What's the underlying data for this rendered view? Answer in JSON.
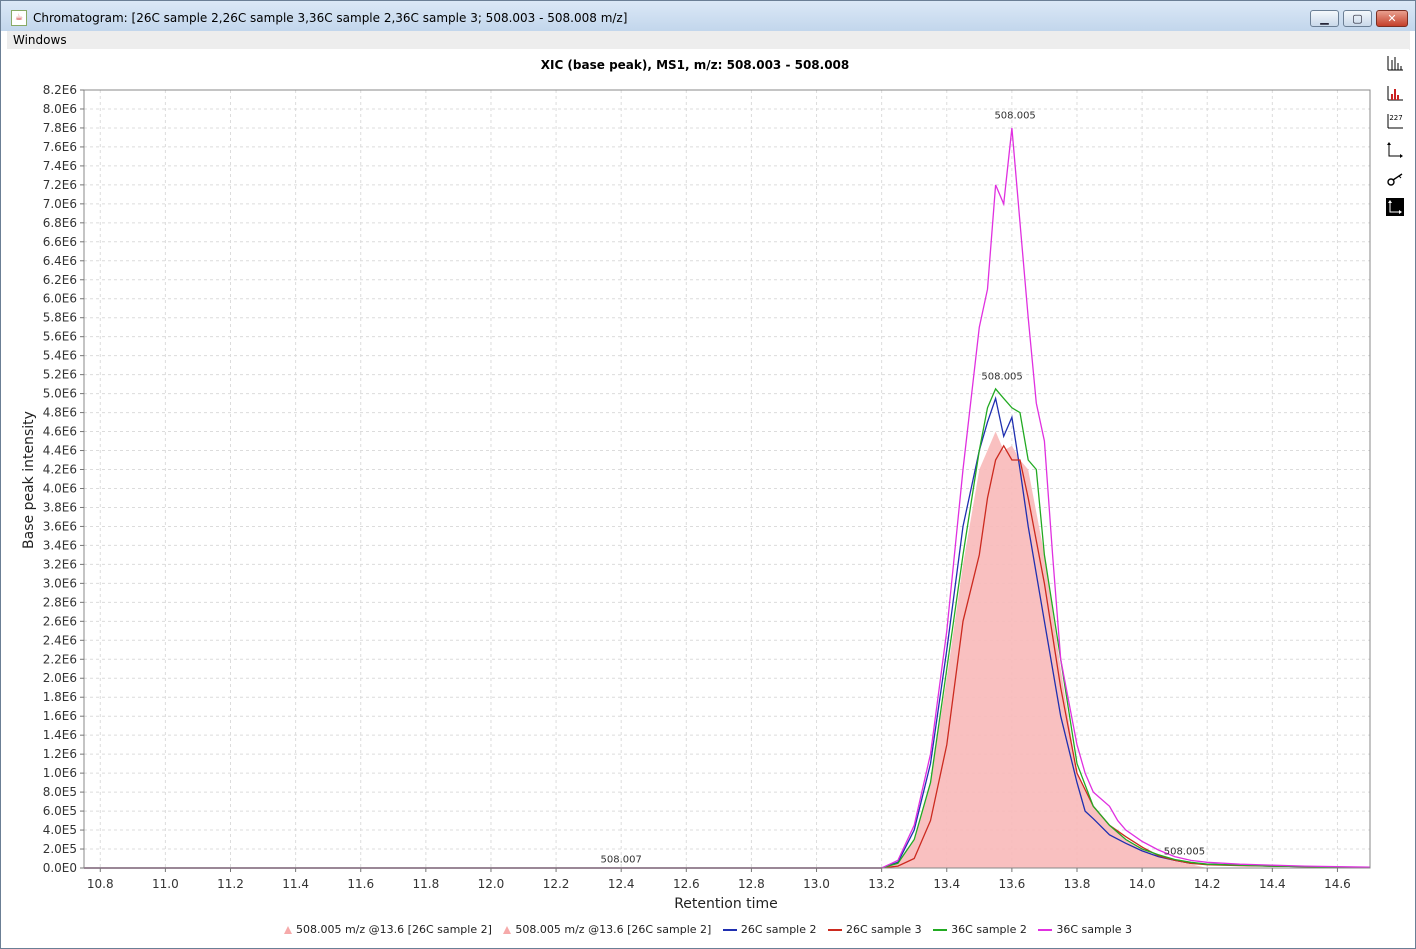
{
  "window": {
    "title": "Chromatogram: [26C sample 2,26C sample 3,36C sample 2,36C sample 3; 508.003 - 508.008 m/z]",
    "minimize_label": "▁",
    "maximize_label": "▢",
    "close_label": "✕"
  },
  "menu": {
    "windows_label": "Windows"
  },
  "toolbar": {
    "icons": [
      "spectrum-icon",
      "peak-spectrum-icon",
      "label-values-icon",
      "axis-icon",
      "key-icon",
      "zoom-reset-icon"
    ],
    "values_label": "227"
  },
  "chart_data": {
    "type": "line",
    "title": "XIC (base peak), MS1, m/z: 508.003 - 508.008",
    "xlabel": "Retention time",
    "ylabel": "Base peak intensity",
    "xlim": [
      10.75,
      14.7
    ],
    "ylim": [
      0,
      8200000
    ],
    "x_ticks": [
      "10.8",
      "11.0",
      "11.2",
      "11.4",
      "11.6",
      "11.8",
      "12.0",
      "12.2",
      "12.4",
      "12.6",
      "12.8",
      "13.0",
      "13.2",
      "13.4",
      "13.6",
      "13.8",
      "14.0",
      "14.2",
      "14.4",
      "14.6"
    ],
    "y_ticks": [
      "0.0E0",
      "2.0E5",
      "4.0E5",
      "6.0E5",
      "8.0E5",
      "1.0E6",
      "1.2E6",
      "1.4E6",
      "1.6E6",
      "1.8E6",
      "2.0E6",
      "2.2E6",
      "2.4E6",
      "2.6E6",
      "2.8E6",
      "3.0E6",
      "3.2E6",
      "3.4E6",
      "3.6E6",
      "3.8E6",
      "4.0E6",
      "4.2E6",
      "4.4E6",
      "4.6E6",
      "4.8E6",
      "5.0E6",
      "5.2E6",
      "5.4E6",
      "5.6E6",
      "5.8E6",
      "6.0E6",
      "6.2E6",
      "6.4E6",
      "6.6E6",
      "6.8E6",
      "7.0E6",
      "7.2E6",
      "7.4E6",
      "7.6E6",
      "7.8E6",
      "8.0E6",
      "8.2E6"
    ],
    "grid": true,
    "legend_position": "bottom",
    "annotations": [
      {
        "text": "508.005",
        "x": 13.61,
        "y": 7900000
      },
      {
        "text": "508.005",
        "x": 13.57,
        "y": 5150000
      },
      {
        "text": "508.007",
        "x": 12.4,
        "y": 60000
      },
      {
        "text": "508.005",
        "x": 14.13,
        "y": 140000
      }
    ],
    "peaks": [
      {
        "name": "508.005 m/z @13.6 [26C sample 2]",
        "color": "#f6aaaa"
      },
      {
        "name": "508.005 m/z @13.6 [26C sample 2]",
        "color": "#f6aaaa"
      }
    ],
    "fill": {
      "color": "#f8b9b9",
      "x": [
        13.2,
        13.25,
        13.3,
        13.35,
        13.4,
        13.45,
        13.5,
        13.55,
        13.575,
        13.6,
        13.625,
        13.65,
        13.7,
        13.75,
        13.8,
        13.85,
        13.9,
        13.95,
        14.0,
        14.05,
        14.1,
        14.15,
        14.2
      ],
      "y": [
        0,
        50000,
        300000,
        900000,
        2000000,
        3200000,
        4200000,
        4600000,
        4400000,
        4450000,
        4300000,
        4200000,
        3300000,
        2100000,
        1000000,
        650000,
        450000,
        300000,
        200000,
        120000,
        70000,
        40000,
        0
      ]
    },
    "series": [
      {
        "name": "26C sample 2",
        "color": "#1f2fb0",
        "x": [
          10.75,
          13.2,
          13.25,
          13.3,
          13.35,
          13.4,
          13.45,
          13.5,
          13.525,
          13.55,
          13.575,
          13.6,
          13.625,
          13.65,
          13.7,
          13.75,
          13.8,
          13.825,
          13.85,
          13.9,
          13.95,
          14.0,
          14.05,
          14.1,
          14.15,
          14.2,
          14.3,
          14.4,
          14.5,
          14.6,
          14.7
        ],
        "y": [
          0,
          0,
          60000,
          400000,
          1100000,
          2300000,
          3600000,
          4400000,
          4700000,
          4950000,
          4550000,
          4750000,
          4200000,
          3600000,
          2600000,
          1600000,
          900000,
          600000,
          520000,
          350000,
          260000,
          180000,
          120000,
          80000,
          50000,
          40000,
          30000,
          20000,
          15000,
          10000,
          5000
        ]
      },
      {
        "name": "26C sample 3",
        "color": "#cc2a1f",
        "x": [
          10.75,
          13.2,
          13.25,
          13.3,
          13.35,
          13.4,
          13.45,
          13.5,
          13.525,
          13.55,
          13.575,
          13.6,
          13.625,
          13.65,
          13.7,
          13.75,
          13.8,
          13.85,
          13.9,
          13.95,
          14.0,
          14.05,
          14.1,
          14.15,
          14.2,
          14.3,
          14.4,
          14.5,
          14.6,
          14.7
        ],
        "y": [
          0,
          0,
          20000,
          100000,
          500000,
          1300000,
          2600000,
          3300000,
          3900000,
          4300000,
          4450000,
          4300000,
          4300000,
          3900000,
          3000000,
          1900000,
          1000000,
          650000,
          450000,
          330000,
          220000,
          130000,
          80000,
          50000,
          35000,
          25000,
          20000,
          15000,
          10000,
          5000
        ]
      },
      {
        "name": "36C sample 2",
        "color": "#22aa22",
        "x": [
          10.75,
          13.2,
          13.25,
          13.3,
          13.35,
          13.4,
          13.45,
          13.5,
          13.525,
          13.55,
          13.575,
          13.6,
          13.625,
          13.65,
          13.675,
          13.7,
          13.75,
          13.8,
          13.85,
          13.9,
          13.95,
          14.0,
          14.05,
          14.1,
          14.15,
          14.2,
          14.3,
          14.4,
          14.5,
          14.6,
          14.7
        ],
        "y": [
          0,
          0,
          50000,
          300000,
          900000,
          2100000,
          3300000,
          4400000,
          4850000,
          5050000,
          4950000,
          4850000,
          4800000,
          4300000,
          4200000,
          3300000,
          2200000,
          1100000,
          650000,
          450000,
          300000,
          200000,
          140000,
          90000,
          60000,
          40000,
          30000,
          20000,
          15000,
          10000,
          5000
        ]
      },
      {
        "name": "36C sample 3",
        "color": "#e030e0",
        "x": [
          10.75,
          13.2,
          13.25,
          13.3,
          13.35,
          13.4,
          13.45,
          13.5,
          13.525,
          13.55,
          13.575,
          13.6,
          13.625,
          13.65,
          13.675,
          13.7,
          13.725,
          13.75,
          13.8,
          13.825,
          13.85,
          13.9,
          13.925,
          13.95,
          14.0,
          14.05,
          14.1,
          14.15,
          14.2,
          14.3,
          14.4,
          14.5,
          14.6,
          14.7
        ],
        "y": [
          0,
          0,
          80000,
          450000,
          1200000,
          2500000,
          4200000,
          5700000,
          6100000,
          7200000,
          7000000,
          7800000,
          6800000,
          5800000,
          4900000,
          4500000,
          3300000,
          2200000,
          1300000,
          1000000,
          800000,
          650000,
          500000,
          400000,
          280000,
          190000,
          120000,
          80000,
          60000,
          40000,
          30000,
          20000,
          15000,
          10000
        ]
      }
    ]
  }
}
